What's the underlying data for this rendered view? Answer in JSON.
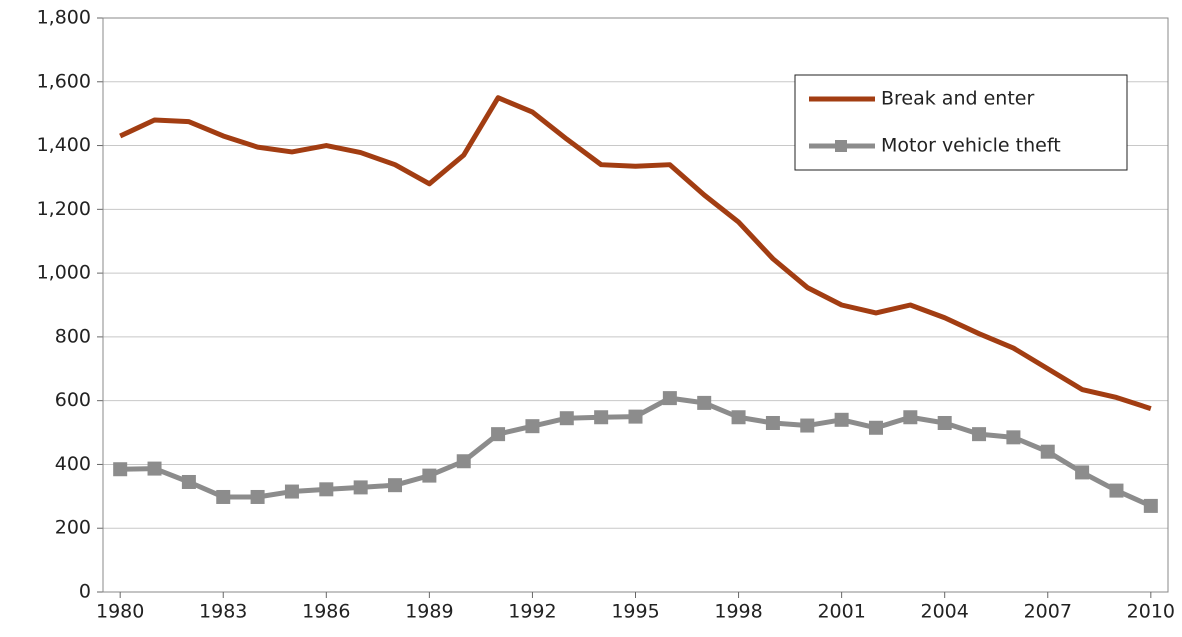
{
  "chart_data": {
    "type": "line",
    "x": [
      1980,
      1981,
      1982,
      1983,
      1984,
      1985,
      1986,
      1987,
      1988,
      1989,
      1990,
      1991,
      1992,
      1993,
      1994,
      1995,
      1996,
      1997,
      1998,
      1999,
      2000,
      2001,
      2002,
      2003,
      2004,
      2005,
      2006,
      2007,
      2008,
      2009,
      2010
    ],
    "series": [
      {
        "name": "Break and enter",
        "color": "#a23d12",
        "marker": "none",
        "values": [
          1430,
          1480,
          1475,
          1430,
          1395,
          1380,
          1400,
          1378,
          1340,
          1280,
          1370,
          1550,
          1505,
          1420,
          1340,
          1335,
          1340,
          1245,
          1160,
          1045,
          955,
          900,
          875,
          900,
          860,
          810,
          765,
          700,
          635,
          610,
          575
        ]
      },
      {
        "name": "Motor vehicle theft",
        "color": "#8c8c8c",
        "marker": "square",
        "values": [
          385,
          387,
          345,
          298,
          298,
          315,
          322,
          328,
          335,
          365,
          410,
          495,
          520,
          545,
          548,
          550,
          608,
          593,
          548,
          530,
          522,
          540,
          515,
          548,
          530,
          495,
          485,
          440,
          375,
          318,
          270
        ]
      }
    ],
    "xlim": [
      1979.5,
      2010.5
    ],
    "xticks": [
      1980,
      1983,
      1986,
      1989,
      1992,
      1995,
      1998,
      2001,
      2004,
      2007,
      2010
    ],
    "ylim": [
      0,
      1800
    ],
    "yticks": [
      0,
      200,
      400,
      600,
      800,
      {
        "value": 1000,
        "label": "1,000"
      },
      {
        "value": 1200,
        "label": "1,200"
      },
      {
        "value": 1400,
        "label": "1,400"
      },
      {
        "value": 1600,
        "label": "1,600"
      },
      {
        "value": 1800,
        "label": "1,800"
      }
    ],
    "grid": true,
    "legend": "upper right"
  }
}
